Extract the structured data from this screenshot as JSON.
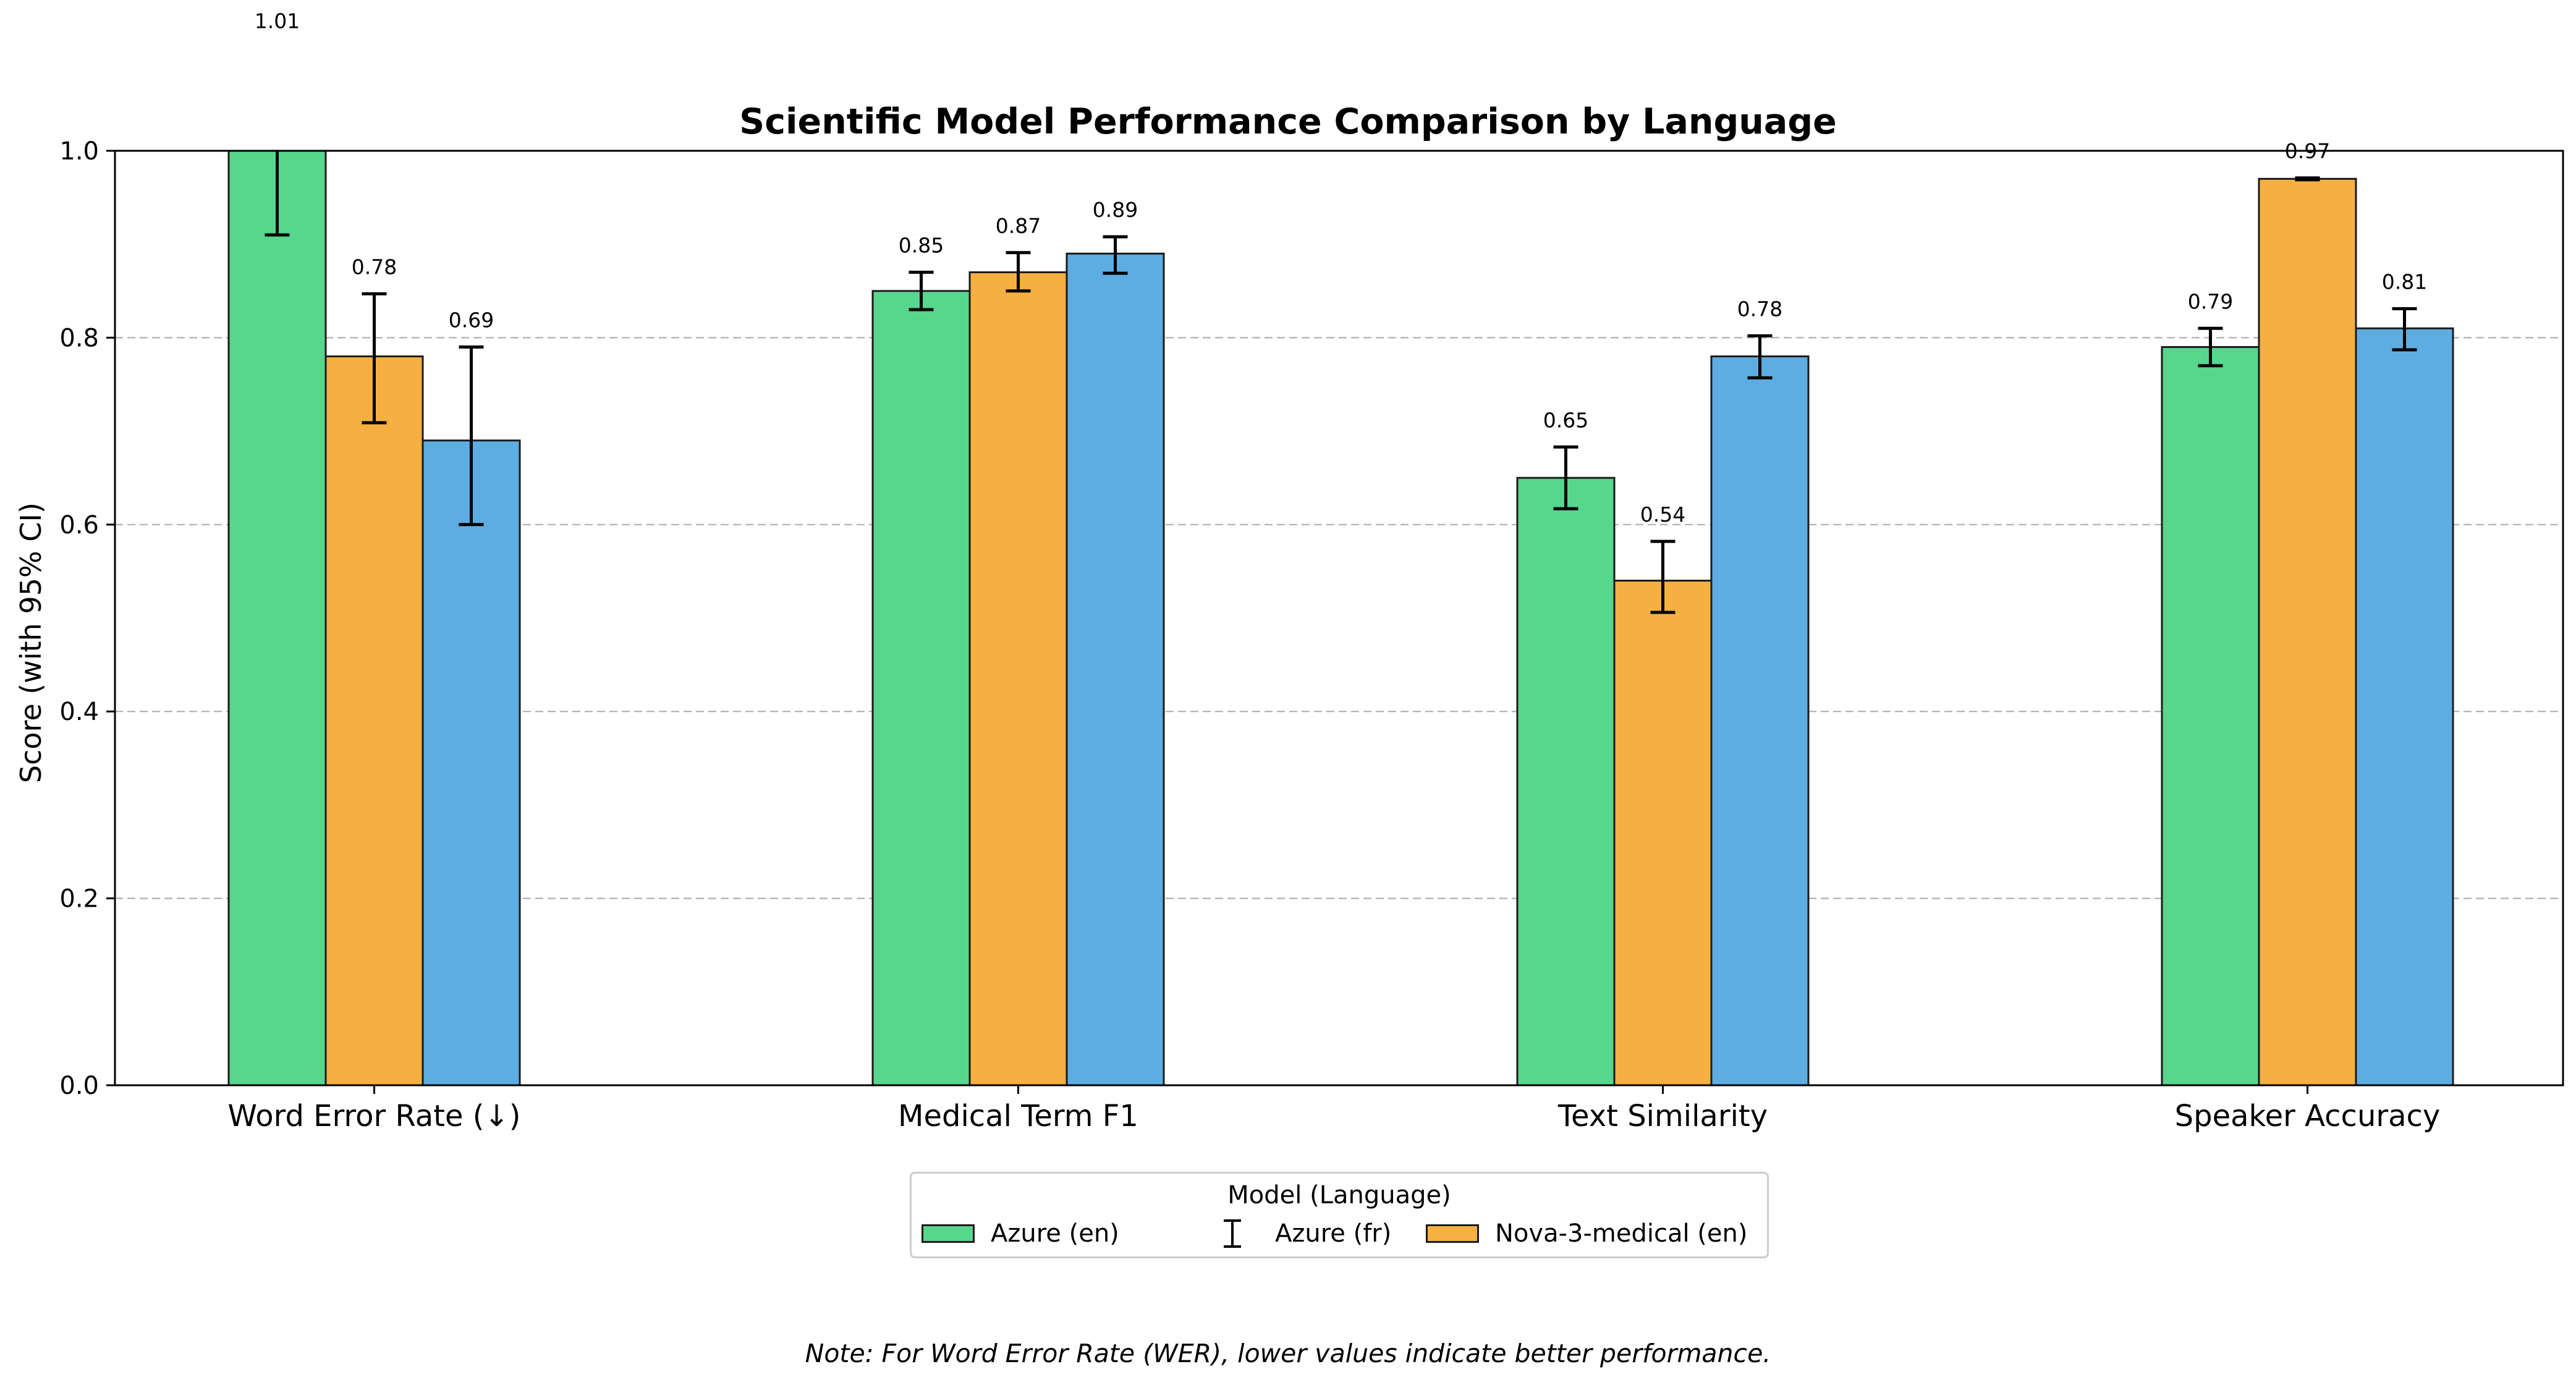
{
  "chart_data": {
    "type": "bar",
    "title": "Scientific Model Performance Comparison by Language",
    "ylabel": "Score (with 95% CI)",
    "xlabel": "",
    "ylim": [
      0,
      1.0
    ],
    "yticks": [
      "0.0",
      "0.2",
      "0.4",
      "0.6",
      "0.8",
      "1.0"
    ],
    "grid": "y-dashed",
    "categories": [
      "Word Error Rate (↓)",
      "Medical Term F1",
      "Text Similarity",
      "Speaker Accuracy"
    ],
    "series": [
      {
        "name": "Azure (en)",
        "color": "#57d68d",
        "values": [
          1.01,
          0.85,
          0.65,
          0.79
        ],
        "labels": [
          "1.01",
          "0.85",
          "0.65",
          "0.79"
        ],
        "ci_low": [
          0.91,
          0.83,
          0.617,
          0.77
        ],
        "ci_high": [
          1.11,
          0.87,
          0.683,
          0.81
        ]
      },
      {
        "name": "Azure (fr)",
        "color": "#f5b041",
        "values": [
          0.78,
          0.87,
          0.54,
          0.97
        ],
        "labels": [
          "0.78",
          "0.87",
          "0.54",
          "0.97"
        ],
        "ci_low": [
          0.709,
          0.85,
          0.506,
          0.969
        ],
        "ci_high": [
          0.847,
          0.891,
          0.582,
          0.971
        ]
      },
      {
        "name": "Nova-3-medical (en)",
        "color": "#5dade2",
        "values": [
          0.69,
          0.89,
          0.78,
          0.81
        ],
        "labels": [
          "0.69",
          "0.89",
          "0.78",
          "0.81"
        ],
        "ci_low": [
          0.6,
          0.869,
          0.757,
          0.787
        ],
        "ci_high": [
          0.79,
          0.908,
          0.802,
          0.831
        ]
      }
    ],
    "legend": {
      "title": "Model (Language)",
      "placement": "bottom-center",
      "entries": [
        "Azure (en)",
        "Azure (fr)",
        "Nova-3-medical (en)"
      ]
    },
    "note": "Note: For Word Error Rate (WER), lower values indicate better performance."
  }
}
